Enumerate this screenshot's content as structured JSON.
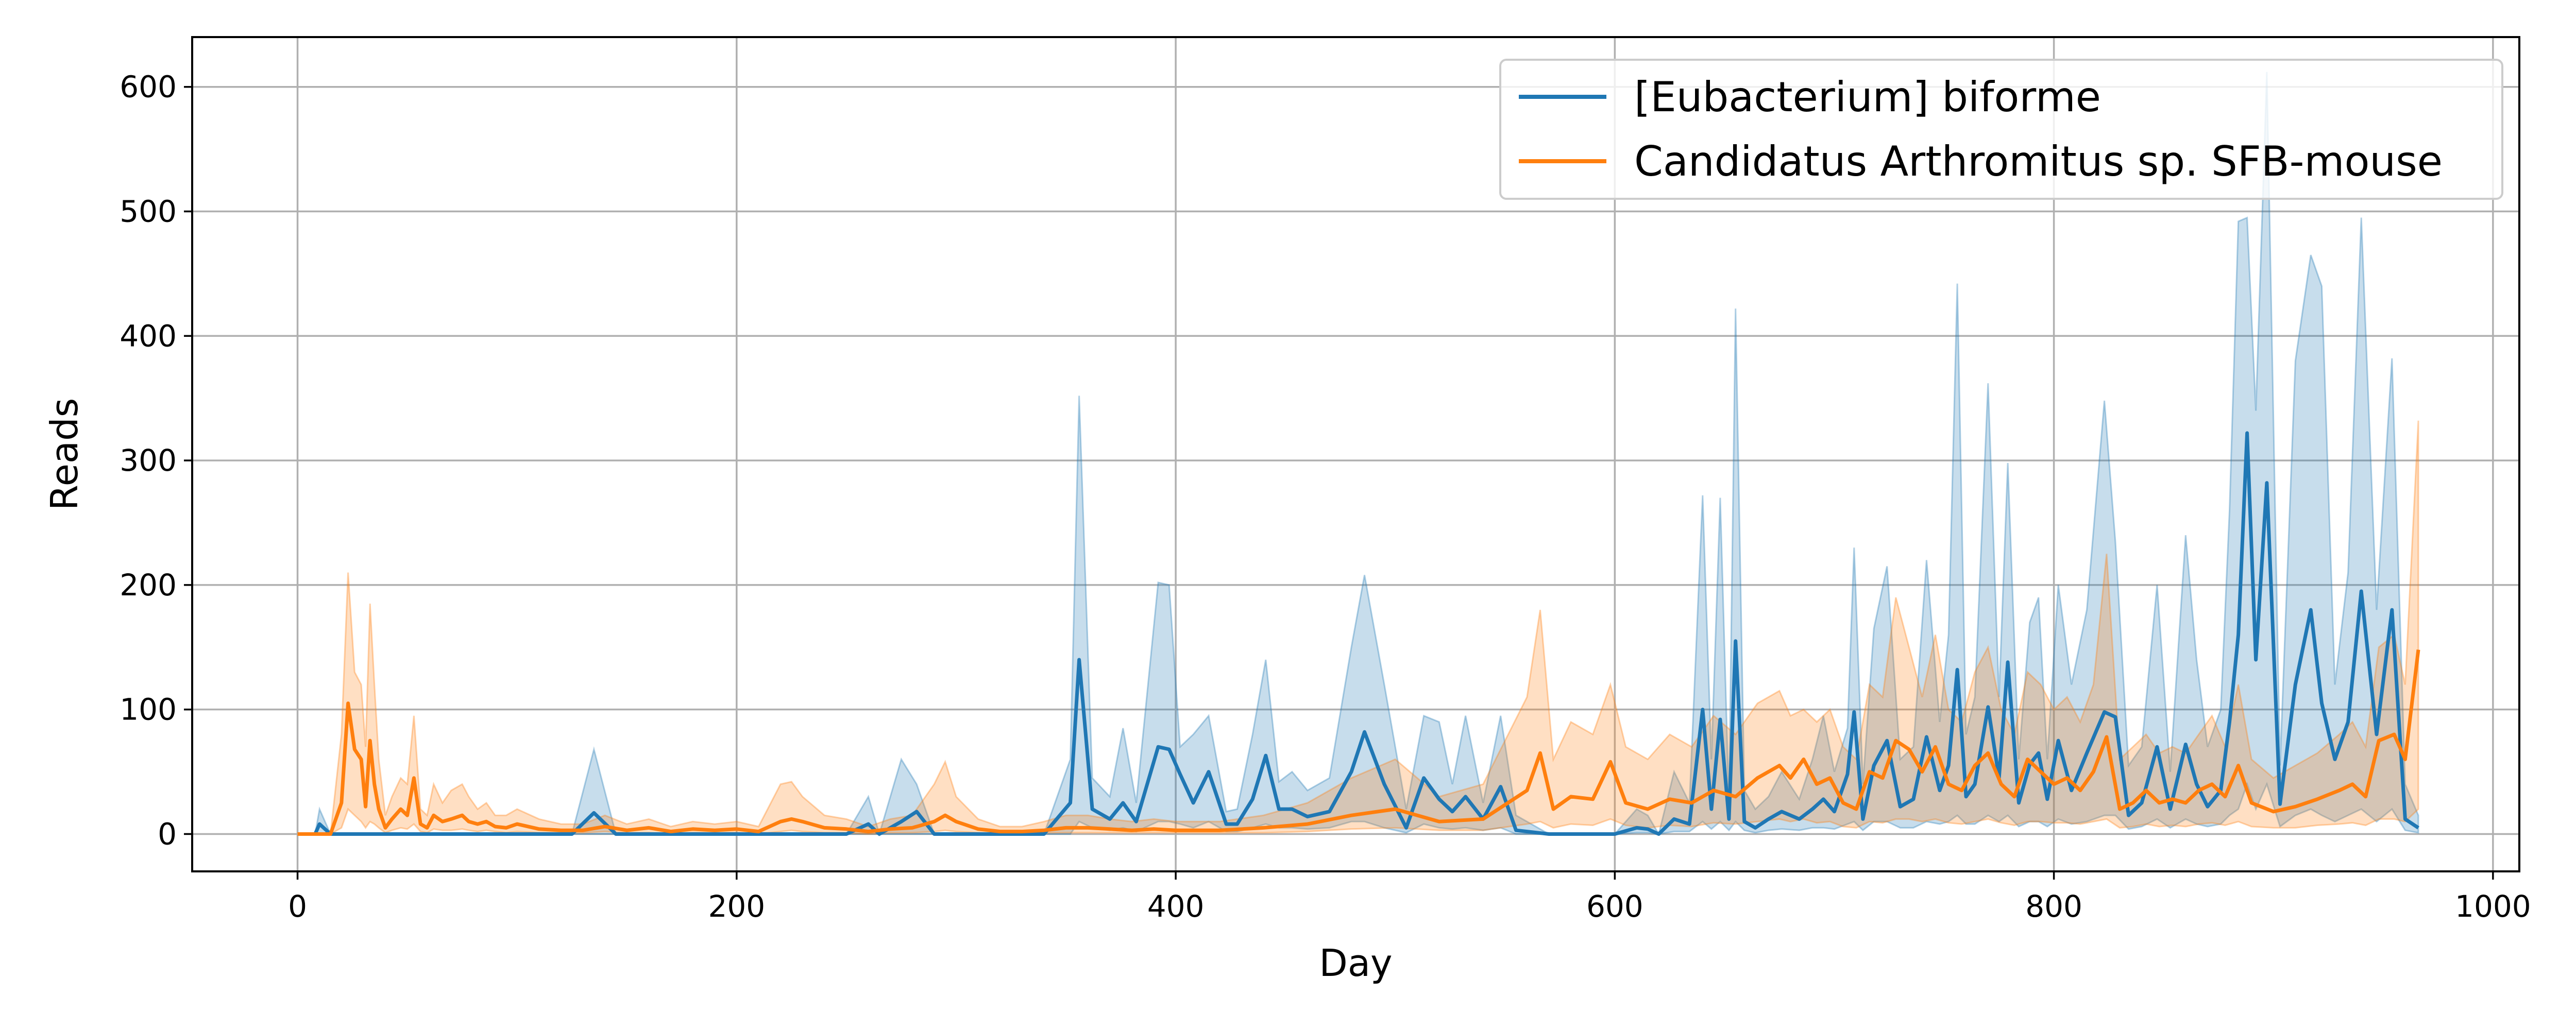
{
  "chart_data": {
    "type": "line",
    "title": "",
    "xlabel": "Day",
    "ylabel": "Reads",
    "xlim": [
      -48,
      1012
    ],
    "ylim": [
      -30,
      640
    ],
    "xticks": [
      0,
      200,
      400,
      600,
      800,
      1000
    ],
    "yticks": [
      0,
      100,
      200,
      300,
      400,
      500,
      600
    ],
    "grid": true,
    "legend_position": "top-right",
    "colors": {
      "series_0": "#1f77b4",
      "series_1": "#ff7f0e",
      "grid": "#b0b0b0",
      "axis": "#000000"
    },
    "series": [
      {
        "name": "[Eubacterium] biforme",
        "color": "#1f77b4",
        "x": [
          0,
          8,
          10,
          15,
          30,
          60,
          100,
          125,
          135,
          145,
          200,
          250,
          260,
          265,
          275,
          282,
          290,
          300,
          340,
          352,
          356,
          362,
          370,
          376,
          382,
          392,
          397,
          402,
          408,
          415,
          423,
          428,
          435,
          441,
          447,
          453,
          460,
          470,
          480,
          486,
          495,
          505,
          513,
          520,
          526,
          532,
          540,
          548,
          555,
          570,
          590,
          600,
          610,
          615,
          620,
          627,
          634,
          640,
          644,
          648,
          652,
          655,
          659,
          664,
          670,
          676,
          684,
          690,
          695,
          700,
          706,
          709,
          713,
          718,
          724,
          730,
          736,
          742,
          748,
          752,
          756,
          760,
          764,
          770,
          775,
          779,
          784,
          789,
          793,
          797,
          802,
          808,
          815,
          823,
          828,
          834,
          840,
          847,
          853,
          860,
          865,
          870,
          876,
          880,
          884,
          888,
          892,
          897,
          903,
          910,
          917,
          922,
          928,
          934,
          940,
          947,
          954,
          960,
          966
        ],
        "y": [
          0,
          0,
          8,
          0,
          0,
          0,
          0,
          0,
          17,
          0,
          0,
          0,
          8,
          0,
          10,
          18,
          0,
          0,
          0,
          25,
          140,
          20,
          12,
          25,
          10,
          70,
          68,
          48,
          25,
          50,
          8,
          8,
          28,
          63,
          20,
          20,
          14,
          18,
          50,
          82,
          40,
          5,
          45,
          28,
          18,
          30,
          12,
          38,
          3,
          0,
          0,
          0,
          5,
          4,
          0,
          12,
          8,
          100,
          20,
          92,
          12,
          155,
          10,
          5,
          12,
          18,
          12,
          20,
          28,
          18,
          48,
          98,
          12,
          55,
          75,
          22,
          28,
          78,
          35,
          55,
          132,
          30,
          40,
          102,
          45,
          138,
          25,
          56,
          65,
          28,
          75,
          35,
          65,
          98,
          94,
          15,
          25,
          70,
          20,
          72,
          40,
          22,
          35,
          90,
          160,
          322,
          140,
          282,
          24,
          120,
          180,
          105,
          60,
          90,
          195,
          80,
          180,
          12,
          5
        ],
        "band_upper": [
          0,
          0,
          20,
          0,
          0,
          0,
          0,
          0,
          68,
          0,
          0,
          0,
          30,
          0,
          60,
          40,
          0,
          0,
          0,
          60,
          352,
          45,
          30,
          85,
          25,
          202,
          200,
          70,
          80,
          95,
          18,
          20,
          80,
          140,
          42,
          50,
          35,
          45,
          150,
          208,
          120,
          20,
          95,
          90,
          40,
          95,
          25,
          95,
          15,
          0,
          0,
          0,
          20,
          15,
          0,
          50,
          25,
          272,
          60,
          270,
          25,
          422,
          35,
          20,
          30,
          50,
          28,
          60,
          95,
          50,
          85,
          230,
          40,
          165,
          215,
          60,
          70,
          220,
          90,
          160,
          442,
          80,
          110,
          362,
          110,
          298,
          60,
          170,
          190,
          60,
          200,
          120,
          180,
          348,
          235,
          55,
          70,
          200,
          50,
          240,
          140,
          70,
          100,
          260,
          492,
          495,
          340,
          612,
          55,
          380,
          465,
          440,
          120,
          210,
          495,
          180,
          382,
          40,
          15
        ],
        "band_lower": [
          0,
          0,
          0,
          0,
          0,
          0,
          0,
          0,
          0,
          0,
          0,
          0,
          0,
          0,
          0,
          0,
          0,
          0,
          0,
          0,
          10,
          5,
          3,
          5,
          2,
          10,
          10,
          8,
          5,
          10,
          2,
          2,
          5,
          8,
          5,
          5,
          4,
          5,
          10,
          10,
          5,
          1,
          8,
          5,
          4,
          5,
          3,
          5,
          0,
          0,
          0,
          0,
          1,
          1,
          0,
          2,
          2,
          10,
          4,
          10,
          3,
          10,
          3,
          1,
          3,
          4,
          3,
          5,
          5,
          4,
          8,
          10,
          3,
          10,
          10,
          5,
          5,
          10,
          8,
          10,
          15,
          8,
          8,
          15,
          10,
          15,
          6,
          10,
          10,
          6,
          12,
          8,
          10,
          15,
          15,
          4,
          6,
          12,
          5,
          12,
          8,
          6,
          8,
          15,
          20,
          40,
          20,
          40,
          6,
          15,
          20,
          15,
          10,
          15,
          20,
          10,
          20,
          3,
          1
        ]
      },
      {
        "name": "Candidatus Arthromitus sp. SFB-mouse",
        "color": "#ff7f0e",
        "x": [
          0,
          5,
          10,
          15,
          20,
          23,
          26,
          29,
          31,
          33,
          35,
          37,
          40,
          43,
          47,
          50,
          53,
          56,
          59,
          62,
          66,
          70,
          75,
          78,
          82,
          86,
          90,
          95,
          100,
          110,
          120,
          130,
          140,
          150,
          160,
          170,
          180,
          190,
          200,
          210,
          220,
          225,
          230,
          240,
          250,
          260,
          270,
          280,
          290,
          295,
          300,
          310,
          320,
          330,
          340,
          350,
          360,
          370,
          380,
          390,
          400,
          420,
          440,
          460,
          480,
          500,
          520,
          540,
          560,
          566,
          572,
          580,
          590,
          598,
          605,
          615,
          625,
          635,
          645,
          655,
          665,
          675,
          680,
          686,
          692,
          698,
          704,
          710,
          716,
          722,
          728,
          734,
          740,
          746,
          752,
          758,
          764,
          770,
          776,
          782,
          788,
          794,
          800,
          806,
          812,
          818,
          824,
          830,
          836,
          842,
          848,
          854,
          860,
          866,
          872,
          878,
          884,
          890,
          900,
          910,
          920,
          930,
          936,
          942,
          948,
          955,
          960,
          966
        ],
        "y": [
          0,
          0,
          0,
          0,
          25,
          105,
          68,
          60,
          22,
          75,
          40,
          20,
          5,
          12,
          20,
          15,
          45,
          8,
          5,
          15,
          10,
          12,
          15,
          10,
          8,
          10,
          6,
          5,
          8,
          4,
          3,
          3,
          6,
          3,
          5,
          2,
          4,
          3,
          4,
          2,
          10,
          12,
          10,
          5,
          4,
          2,
          4,
          5,
          10,
          15,
          10,
          4,
          2,
          2,
          3,
          5,
          5,
          4,
          3,
          4,
          3,
          3,
          5,
          8,
          15,
          20,
          10,
          12,
          35,
          65,
          20,
          30,
          28,
          58,
          25,
          20,
          28,
          25,
          35,
          30,
          45,
          55,
          45,
          60,
          40,
          45,
          25,
          20,
          50,
          45,
          75,
          68,
          50,
          70,
          40,
          35,
          55,
          65,
          40,
          30,
          60,
          50,
          40,
          45,
          35,
          50,
          78,
          20,
          25,
          35,
          25,
          28,
          25,
          35,
          40,
          30,
          55,
          25,
          18,
          22,
          28,
          35,
          40,
          30,
          75,
          80,
          60,
          148
        ],
        "band_upper": [
          0,
          0,
          0,
          0,
          80,
          210,
          130,
          120,
          70,
          185,
          120,
          60,
          15,
          30,
          45,
          40,
          95,
          20,
          15,
          40,
          25,
          35,
          40,
          30,
          20,
          25,
          15,
          15,
          20,
          12,
          8,
          8,
          15,
          8,
          12,
          6,
          10,
          8,
          10,
          6,
          40,
          42,
          30,
          15,
          12,
          6,
          12,
          15,
          40,
          58,
          30,
          12,
          6,
          6,
          10,
          15,
          15,
          12,
          10,
          12,
          10,
          10,
          15,
          25,
          45,
          60,
          30,
          40,
          110,
          180,
          60,
          90,
          80,
          120,
          70,
          60,
          80,
          70,
          95,
          80,
          105,
          115,
          95,
          100,
          90,
          100,
          70,
          60,
          120,
          110,
          190,
          150,
          110,
          160,
          100,
          90,
          130,
          150,
          100,
          80,
          130,
          120,
          100,
          110,
          90,
          120,
          225,
          60,
          70,
          80,
          65,
          70,
          65,
          80,
          95,
          70,
          120,
          60,
          45,
          55,
          65,
          80,
          90,
          70,
          150,
          160,
          120,
          332
        ],
        "band_lower": [
          0,
          0,
          0,
          0,
          5,
          20,
          15,
          10,
          5,
          10,
          8,
          5,
          1,
          3,
          5,
          4,
          8,
          2,
          1,
          4,
          3,
          3,
          4,
          3,
          2,
          3,
          2,
          1,
          2,
          1,
          1,
          1,
          2,
          1,
          1,
          0,
          1,
          1,
          1,
          0,
          2,
          3,
          2,
          1,
          1,
          0,
          1,
          1,
          2,
          3,
          2,
          1,
          0,
          0,
          1,
          1,
          1,
          1,
          1,
          1,
          1,
          1,
          1,
          2,
          4,
          5,
          3,
          3,
          8,
          10,
          5,
          8,
          7,
          12,
          7,
          5,
          7,
          6,
          9,
          8,
          10,
          12,
          10,
          12,
          9,
          10,
          6,
          5,
          10,
          9,
          12,
          12,
          10,
          12,
          9,
          8,
          10,
          12,
          9,
          7,
          10,
          10,
          9,
          9,
          8,
          10,
          12,
          5,
          6,
          8,
          6,
          7,
          6,
          8,
          9,
          7,
          10,
          6,
          5,
          5,
          7,
          8,
          9,
          7,
          12,
          12,
          10,
          20
        ]
      }
    ]
  }
}
